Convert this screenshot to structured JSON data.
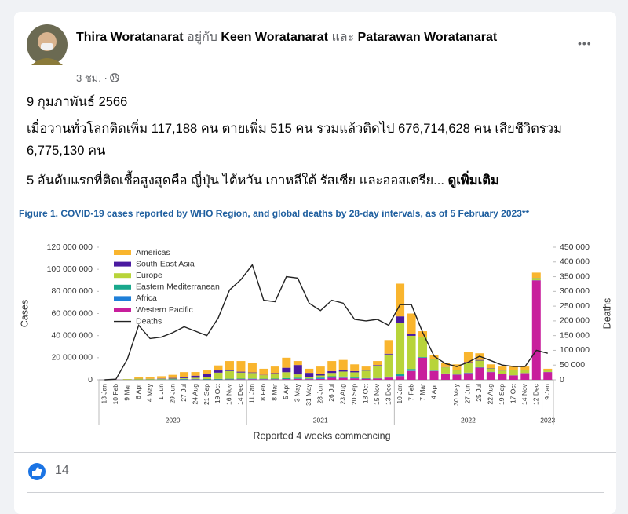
{
  "post": {
    "author": "Thira Woratanarat",
    "with_word": "อยู่กับ",
    "tagged_1": "Keen Woratanarat",
    "and_word": "และ",
    "tagged_2": "Patarawan Woratanarat",
    "time": "3 ชม. ·",
    "more_button": "•••",
    "paragraphs": [
      "9 กุมภาพันธ์ 2566",
      "เมื่อวานทั่วโลกติดเพิ่ม 117,188 คน ตายเพิ่ม 515 คน รวมแล้วติดไป 676,714,628 คน เสียชีวิตรวม 6,775,130 คน",
      "5 อันดับแรกที่ติดเชื้อสูงสุดคือ ญี่ปุ่น ไต้หวัน เกาหลีใต้ รัสเซีย และออสเตรีย..."
    ],
    "see_more": "ดูเพิ่มเติม",
    "reaction_count": "14"
  },
  "chart_data": {
    "type": "stacked-bar",
    "title": "Figure 1. COVID-19 cases reported by WHO Region, and global deaths by 28-day intervals, as of 5 February 2023**",
    "ylabel": "Cases",
    "y2label": "Deaths",
    "xlabel": "Reported 4 weeks commencing",
    "categories": [
      "13 Jan",
      "10 Feb",
      "9 Mar",
      "6 Apr",
      "4 May",
      "1 Jun",
      "29 Jun",
      "27 Jul",
      "24 Aug",
      "21 Sep",
      "19 Oct",
      "16 Nov",
      "14 Dec",
      "11 Jan",
      "8 Feb",
      "8 Mar",
      "5 Apr",
      "3 May",
      "31 May",
      "28 Jun",
      "26 Jul",
      "23 Aug",
      "20 Sep",
      "18 Oct",
      "15 Nov",
      "13 Dec",
      "10 Jan",
      "7 Feb",
      "7 Mar",
      "4 Apr",
      null,
      "30 May",
      "27 Jun",
      "25 Jul",
      "22 Aug",
      "19 Sep",
      "17 Oct",
      "14 Nov",
      "12 Dec",
      "9 Jan"
    ],
    "years": [
      "2020",
      "2021",
      "2022",
      "2023"
    ],
    "ylim": [
      0,
      120000000
    ],
    "yticks": [
      0,
      {
        "value": 20000000,
        "label": "20 000 000"
      },
      {
        "value": 40000000,
        "label": "40 000 000"
      },
      {
        "value": 60000000,
        "label": "60 000 000"
      },
      {
        "value": 80000000,
        "label": "80 000 000"
      },
      {
        "value": 100000000,
        "label": "100 000 000"
      },
      {
        "value": 120000000,
        "label": "120 000 000"
      }
    ],
    "y2lim": [
      0,
      450000
    ],
    "y2ticks": [
      0,
      {
        "value": 50000,
        "label": "50 000"
      },
      {
        "value": 100000,
        "label": "100 000"
      },
      {
        "value": 150000,
        "label": "150 000"
      },
      {
        "value": 200000,
        "label": "200 000"
      },
      {
        "value": 250000,
        "label": "250 000"
      },
      {
        "value": 300000,
        "label": "300 000"
      },
      {
        "value": 350000,
        "label": "350 000"
      },
      {
        "value": 400000,
        "label": "400 000"
      },
      {
        "value": 450000,
        "label": "450 000"
      }
    ],
    "grid": false,
    "legend": "upper-left",
    "series": [
      {
        "name": "Americas",
        "color": "#f9b52e",
        "values": [
          0,
          0,
          50000,
          1100000,
          1600000,
          2100000,
          2800000,
          4300000,
          3300000,
          3400000,
          4500000,
          7800000,
          9600000,
          8300000,
          5500000,
          5900000,
          9100000,
          3600000,
          3700000,
          6500000,
          9100000,
          9000000,
          6100000,
          3100000,
          3600000,
          12400000,
          29600000,
          18200000,
          5000000,
          3400000,
          3500000,
          5200000,
          9000000,
          6000000,
          3400000,
          3650000,
          3250000,
          3250000,
          4750000,
          1250000
        ]
      },
      {
        "name": "South-East Asia",
        "color": "#4a1aa0",
        "values": [
          0,
          0,
          0,
          50000,
          100000,
          300000,
          600000,
          1200000,
          1900000,
          2600000,
          2000000,
          1200000,
          800000,
          500000,
          300000,
          500000,
          4000000,
          8500000,
          3600000,
          1600000,
          1700000,
          1500000,
          1100000,
          600000,
          500000,
          700000,
          6000000,
          2000000,
          400000,
          200000,
          200000,
          300000,
          500000,
          600000,
          300000,
          200000,
          100000,
          100000,
          100000,
          100000
        ]
      },
      {
        "name": "Europe",
        "color": "#b8d43a",
        "values": [
          0,
          0,
          500000,
          800000,
          500000,
          400000,
          500000,
          700000,
          1000000,
          1800000,
          5700000,
          7000000,
          5500000,
          5000000,
          3200000,
          4500000,
          5300000,
          3000000,
          1400000,
          1900000,
          3000000,
          4500000,
          4700000,
          6800000,
          11300000,
          20000000,
          46000000,
          30000000,
          18000000,
          10000000,
          5500000,
          3600000,
          9000000,
          6000000,
          3000000,
          3000000,
          4500000,
          2500000,
          2000000,
          1500000
        ]
      },
      {
        "name": "Eastern Mediterranean",
        "color": "#19a88c",
        "values": [
          0,
          0,
          50000,
          100000,
          150000,
          300000,
          400000,
          400000,
          400000,
          400000,
          500000,
          600000,
          500000,
          400000,
          400000,
          600000,
          900000,
          800000,
          500000,
          600000,
          800000,
          1000000,
          600000,
          400000,
          300000,
          500000,
          1500000,
          1500000,
          500000,
          300000,
          200000,
          200000,
          300000,
          300000,
          200000,
          100000,
          100000,
          100000,
          100000,
          100000
        ]
      },
      {
        "name": "Africa",
        "color": "#1f7fd8",
        "values": [
          0,
          0,
          0,
          10000,
          30000,
          50000,
          100000,
          200000,
          150000,
          100000,
          100000,
          100000,
          200000,
          300000,
          200000,
          100000,
          100000,
          200000,
          200000,
          600000,
          600000,
          300000,
          200000,
          100000,
          100000,
          400000,
          500000,
          300000,
          100000,
          100000,
          100000,
          100000,
          200000,
          100000,
          100000,
          50000,
          50000,
          50000,
          50000,
          50000
        ]
      },
      {
        "name": "Western Pacific",
        "color": "#c81e9c",
        "values": [
          10000,
          70000,
          100000,
          100000,
          100000,
          100000,
          100000,
          200000,
          300000,
          200000,
          200000,
          300000,
          400000,
          500000,
          400000,
          400000,
          600000,
          900000,
          600000,
          800000,
          1800000,
          1700000,
          1300000,
          1000000,
          1200000,
          2000000,
          3400000,
          8000000,
          20000000,
          8000000,
          5500000,
          4600000,
          6000000,
          11000000,
          7000000,
          5000000,
          4000000,
          6000000,
          90000000,
          7000000
        ]
      },
      {
        "name": "Deaths",
        "color": "#222222",
        "type": "line",
        "axis": "y2",
        "values": [
          0,
          2000,
          70000,
          185000,
          140000,
          145000,
          160000,
          180000,
          165000,
          150000,
          210000,
          305000,
          340000,
          390000,
          270000,
          265000,
          350000,
          345000,
          260000,
          235000,
          270000,
          260000,
          205000,
          200000,
          205000,
          185000,
          255000,
          255000,
          160000,
          80000,
          55000,
          45000,
          60000,
          80000,
          65000,
          50000,
          45000,
          45000,
          100000,
          90000
        ]
      }
    ]
  }
}
